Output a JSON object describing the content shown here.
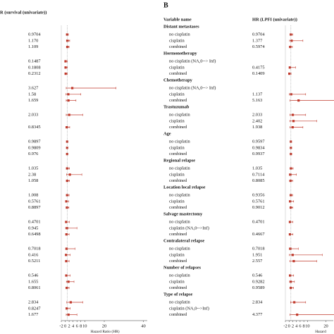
{
  "chart_data": [
    {
      "type": "forest",
      "title": "R (survival (univariate))",
      "xlabel": "Hazard Ratio (HR)",
      "xlim": [
        -2,
        42
      ],
      "xticks": [
        -2,
        0,
        2,
        4,
        6,
        8,
        10,
        20,
        40
      ],
      "reference": 1,
      "color": "#c0392b",
      "groups": [
        {
          "values": [
            0.9704,
            1.17,
            1.109
          ],
          "value_labels": [
            "0.9704",
            "1.170",
            "1.109"
          ],
          "lower": [
            0.6,
            0.6,
            0.6
          ],
          "upper": [
            1.6,
            2.3,
            2
          ]
        },
        {
          "values": [
            0.1487,
            0.1808,
            0.2312
          ],
          "value_labels": [
            "0.1487",
            "0.1808",
            "0.2312"
          ],
          "lower": [
            0.02,
            0.03,
            0.05
          ],
          "upper": [
            1.1,
            1.1,
            1.1
          ]
        },
        {
          "values": [
            3.627,
            1.58,
            1.659
          ],
          "value_labels": [
            "3.627",
            "1.58",
            "1.659"
          ],
          "lower": [
            0.5,
            0.4,
            0.5
          ],
          "upper": [
            26,
            8,
            5.5
          ]
        },
        {
          "values": [
            2.033,
            null,
            0.8345
          ],
          "value_labels": [
            "2.033",
            null,
            "0.8345"
          ],
          "lower": [
            0.5,
            null,
            0.3
          ],
          "upper": [
            9,
            null,
            2.3
          ]
        },
        {
          "values": [
            0.9897,
            0.9809,
            0.976
          ],
          "value_labels": [
            "0.9897",
            "0.9809",
            "0.976"
          ],
          "lower": [
            0.95,
            0.94,
            0.95
          ],
          "upper": [
            1.03,
            1.02,
            1.0
          ]
        },
        {
          "values": [
            1.035,
            2.38,
            1.058
          ],
          "value_labels": [
            "1.035",
            "2.38",
            "1.058"
          ],
          "lower": [
            0.5,
            0.7,
            0.5
          ],
          "upper": [
            2.2,
            8.5,
            2.2
          ]
        },
        {
          "values": [
            1.008,
            0.5761,
            0.8897
          ],
          "value_labels": [
            "1.008",
            "0.5761",
            "0.8897"
          ],
          "lower": [
            0.5,
            0.2,
            0.4
          ],
          "upper": [
            2,
            1.7,
            1.9
          ]
        },
        {
          "values": [
            0.4701,
            0.945,
            0.6498
          ],
          "value_labels": [
            "0.4701",
            "0.945",
            "0.6498"
          ],
          "lower": [
            0.1,
            0.2,
            0.2
          ],
          "upper": [
            2.1,
            6,
            2
          ]
        },
        {
          "values": [
            0.7018,
            0.416,
            0.5211
          ],
          "value_labels": [
            "0.7018",
            "0.416",
            "0.5211"
          ],
          "lower": [
            0.2,
            0.1,
            0.1
          ],
          "upper": [
            5,
            2.5,
            2
          ]
        },
        {
          "values": [
            0.546,
            1.655,
            0.8061
          ],
          "value_labels": [
            "0.546",
            "1.655",
            "0.8061"
          ],
          "lower": [
            0.1,
            0.6,
            0.3
          ],
          "upper": [
            2.5,
            4.5,
            2
          ]
        },
        {
          "values": [
            2.834,
            0.8247,
            1.677
          ],
          "value_labels": [
            "2.834",
            "0.8247",
            "1.677"
          ],
          "lower": [
            0.8,
            0.3,
            0.5
          ],
          "upper": [
            9,
            2.5,
            6
          ]
        }
      ]
    },
    {
      "type": "forest",
      "panel_label": "B",
      "name_header": "Variable name",
      "title": "HR (LPFI (univariate))",
      "xlabel": "Hazard",
      "xlim": [
        -2,
        24
      ],
      "xticks": [
        -2,
        0,
        2,
        4,
        6,
        8,
        10,
        20
      ],
      "reference": 1,
      "color": "#c0392b",
      "groups": [
        {
          "name": "Distant metastases",
          "categories": [
            "no cisplatin",
            "cisplatin",
            "combined"
          ],
          "values": [
            0.9704,
            1.377,
            0.5974
          ],
          "value_labels": [
            "0.9704",
            "1.377",
            "0.5974"
          ],
          "lower": [
            0.5,
            0.3,
            0.2
          ],
          "upper": [
            2,
            7.5,
            1.8
          ]
        },
        {
          "name": "Hormonotherapy",
          "categories": [
            "no cisplatin (NA,0--> Inf)",
            "cisplatin",
            "combined"
          ],
          "values": [
            null,
            0.4175,
            0.1409
          ],
          "value_labels": [
            null,
            "0.4175",
            "0.1409"
          ],
          "lower": [
            null,
            0.05,
            0.02
          ],
          "upper": [
            null,
            3.5,
            1.1
          ]
        },
        {
          "name": "Chemotherapy",
          "categories": [
            "no cisplatin (NA,0--> Inf)",
            "cisplatin",
            "combined"
          ],
          "values": [
            null,
            1.137,
            5.163
          ],
          "value_labels": [
            null,
            "1.137",
            "5.163"
          ],
          "lower": [
            null,
            0.2,
            0.5
          ],
          "upper": [
            null,
            9,
            55
          ]
        },
        {
          "name": "Trastuzumab",
          "categories": [
            "no cisplatin",
            "cisplatin",
            "combined"
          ],
          "values": [
            2.033,
            2.402,
            1.938
          ],
          "value_labels": [
            "2.033",
            "2.402",
            "1.938"
          ],
          "lower": [
            0.5,
            0.4,
            0.5
          ],
          "upper": [
            9,
            15,
            7.5
          ]
        },
        {
          "name": "Age",
          "categories": [
            "no cisplatin",
            "cisplatin",
            "combined"
          ],
          "values": [
            0.9597,
            0.9834,
            0.9937
          ],
          "value_labels": [
            "0.9597",
            "0.9834",
            "0.9937"
          ],
          "lower": [
            0.9,
            0.93,
            0.95
          ],
          "upper": [
            1.02,
            1.04,
            1.03
          ]
        },
        {
          "name": "Regional relapse",
          "categories": [
            "no cisplatin",
            "cisplatin",
            "combined"
          ],
          "values": [
            1.035,
            0.7114,
            0.8085
          ],
          "value_labels": [
            "1.035",
            "0.7114",
            "0.8085"
          ],
          "lower": [
            0.5,
            0.1,
            0.3
          ],
          "upper": [
            2.2,
            4,
            2
          ]
        },
        {
          "name": "Location local relapse",
          "categories": [
            "no cisplatin",
            "cisplatin",
            "combined"
          ],
          "values": [
            0.9356,
            0.5761,
            0.9012
          ],
          "value_labels": [
            "0.9356",
            "0.5761",
            "0.9012"
          ],
          "lower": [
            0.5,
            0.1,
            0.4
          ],
          "upper": [
            1.9,
            2.5,
            2
          ]
        },
        {
          "name": "Salvage mastectomy",
          "categories": [
            "no cisplatin",
            "cisplatin (NA,0-->Inf)",
            "combined"
          ],
          "values": [
            0.4701,
            null,
            0.4667
          ],
          "value_labels": [
            "0.4701",
            null,
            "0.4667"
          ],
          "lower": [
            0.1,
            null,
            0.1
          ],
          "upper": [
            2.1,
            null,
            2.1
          ]
        },
        {
          "name": "Contralateral relapse",
          "categories": [
            "no cisplatin",
            "cisplatin",
            "combined"
          ],
          "values": [
            0.7018,
            1.951,
            2.557
          ],
          "value_labels": [
            "0.7018",
            "1.951",
            "2.557"
          ],
          "lower": [
            0.1,
            0.2,
            0.4
          ],
          "upper": [
            5,
            18,
            15
          ]
        },
        {
          "name": "Number of relapses",
          "categories": [
            "no cisplatin",
            "cisplatin",
            "combined"
          ],
          "values": [
            0.546,
            0.9282,
            0.9589
          ],
          "value_labels": [
            "0.546",
            "0.9282",
            "0.9589"
          ],
          "lower": [
            0.1,
            0.3,
            0.4
          ],
          "upper": [
            2.5,
            2.9,
            2.4
          ]
        },
        {
          "name": "Type of relapse",
          "categories": [
            "no cisplatin",
            "cisplatin (NA,0-->Inf)",
            "combined"
          ],
          "values": [
            2.834,
            null,
            4.377
          ],
          "value_labels": [
            "2.834",
            null,
            "4.377"
          ],
          "lower": [
            0.8,
            null,
            0.5
          ],
          "upper": [
            9,
            null,
            40
          ]
        }
      ]
    }
  ]
}
